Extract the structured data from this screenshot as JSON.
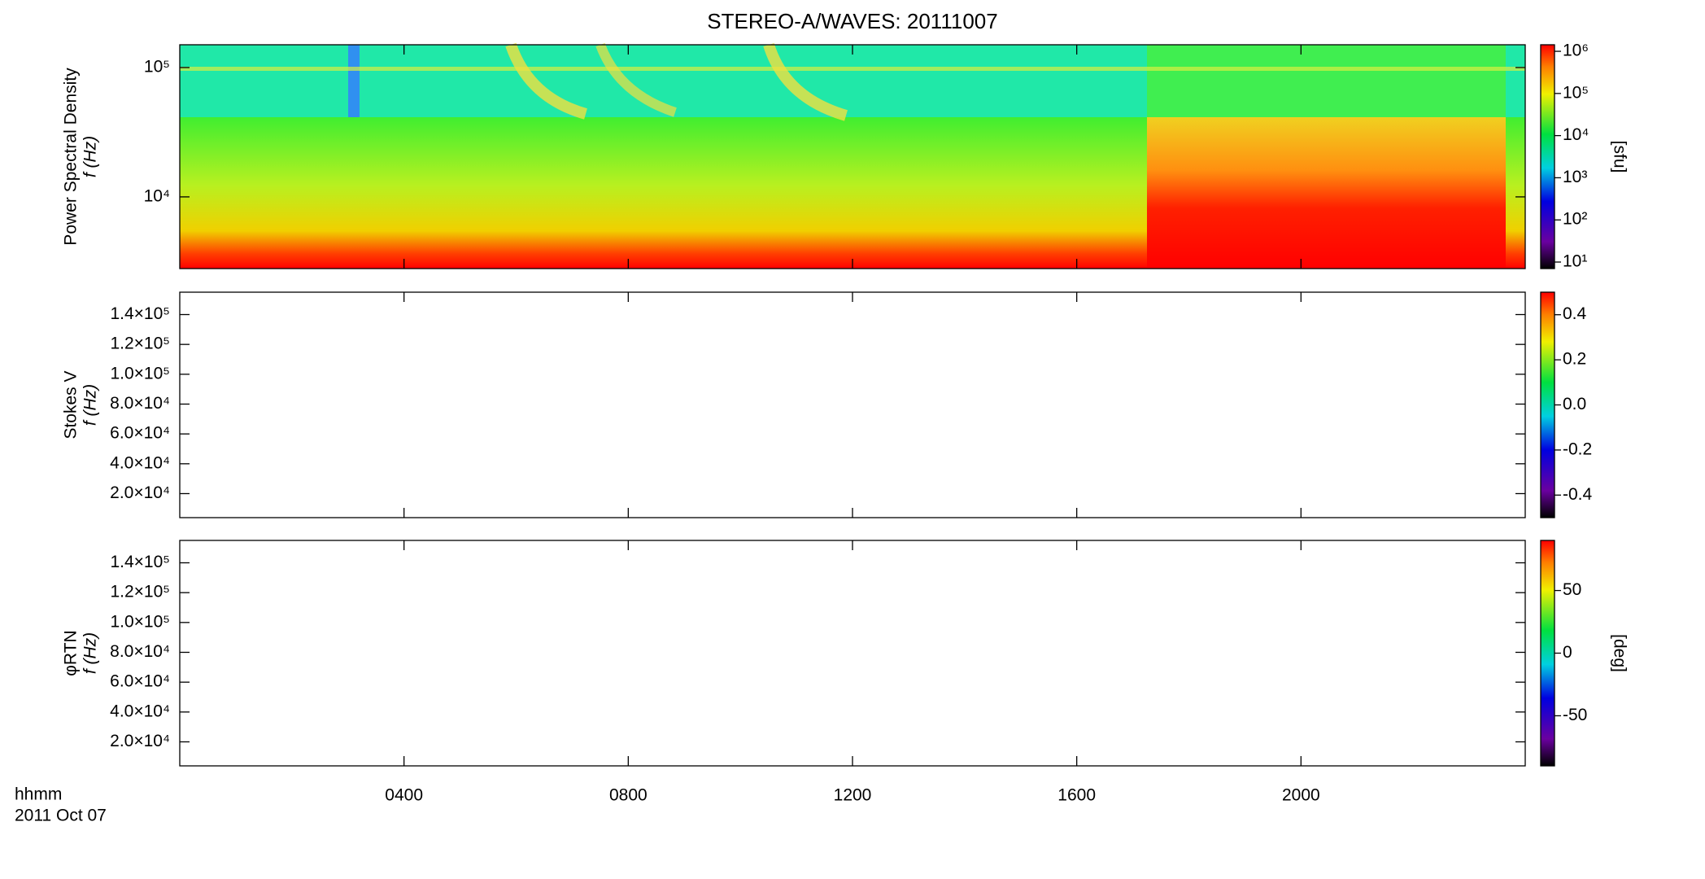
{
  "chart_data": [
    {
      "type": "heatmap",
      "title": "STEREO-A/WAVES: 20111007",
      "ylabel": [
        "Power Spectral Density",
        "f (Hz)"
      ],
      "yscale": "log",
      "ylim": [
        2790,
        150000
      ],
      "yticks": [
        {
          "value": 10000,
          "label": "10⁴"
        },
        {
          "value": 100000,
          "label": "10⁵"
        }
      ],
      "cscale": "log",
      "clim": [
        7,
        1430000
      ],
      "clabel": "[sfu]",
      "cticks": [
        {
          "value": 10,
          "label": "10¹"
        },
        {
          "value": 100,
          "label": "10²"
        },
        {
          "value": 1000,
          "label": "10³"
        },
        {
          "value": 10000,
          "label": "10⁴"
        },
        {
          "value": 100000,
          "label": "10⁵"
        },
        {
          "value": 1000000,
          "label": "10⁶"
        }
      ]
    },
    {
      "type": "heatmap",
      "ylabel": [
        "Stokes V",
        "f (Hz)"
      ],
      "yscale": "linear",
      "ylim": [
        3900,
        155000
      ],
      "yticks": [
        {
          "value": 20000,
          "label": "2.0×10⁴"
        },
        {
          "value": 40000,
          "label": "4.0×10⁴"
        },
        {
          "value": 60000,
          "label": "6.0×10⁴"
        },
        {
          "value": 80000,
          "label": "8.0×10⁴"
        },
        {
          "value": 100000,
          "label": "1.0×10⁵"
        },
        {
          "value": 120000,
          "label": "1.2×10⁵"
        },
        {
          "value": 140000,
          "label": "1.4×10⁵"
        }
      ],
      "cscale": "linear",
      "clim": [
        -0.5,
        0.5
      ],
      "cticks": [
        {
          "value": -0.4,
          "label": "-0.4"
        },
        {
          "value": -0.2,
          "label": "-0.2"
        },
        {
          "value": 0,
          "label": "0.0"
        },
        {
          "value": 0.2,
          "label": "0.2"
        },
        {
          "value": 0.4,
          "label": "0.4"
        }
      ]
    },
    {
      "type": "heatmap",
      "ylabel": [
        "φRTN",
        "f (Hz)"
      ],
      "yscale": "linear",
      "ylim": [
        3900,
        155000
      ],
      "yticks": [
        {
          "value": 20000,
          "label": "2.0×10⁴"
        },
        {
          "value": 40000,
          "label": "4.0×10⁴"
        },
        {
          "value": 60000,
          "label": "6.0×10⁴"
        },
        {
          "value": 80000,
          "label": "8.0×10⁴"
        },
        {
          "value": 100000,
          "label": "1.0×10⁵"
        },
        {
          "value": 120000,
          "label": "1.2×10⁵"
        },
        {
          "value": 140000,
          "label": "1.4×10⁵"
        }
      ],
      "cscale": "linear",
      "clim": [
        -90,
        90
      ],
      "clabel": "[deg]",
      "cticks": [
        -50,
        0,
        50
      ],
      "xlim": [
        0,
        24
      ],
      "xlabel": "hhmm",
      "date": "2011 Oct 07",
      "xticks": [
        {
          "value": 4,
          "label": "0400"
        },
        {
          "value": 8,
          "label": "0800"
        },
        {
          "value": 12,
          "label": "1200"
        },
        {
          "value": 16,
          "label": "1600"
        },
        {
          "value": 20,
          "label": "2000"
        }
      ]
    }
  ]
}
